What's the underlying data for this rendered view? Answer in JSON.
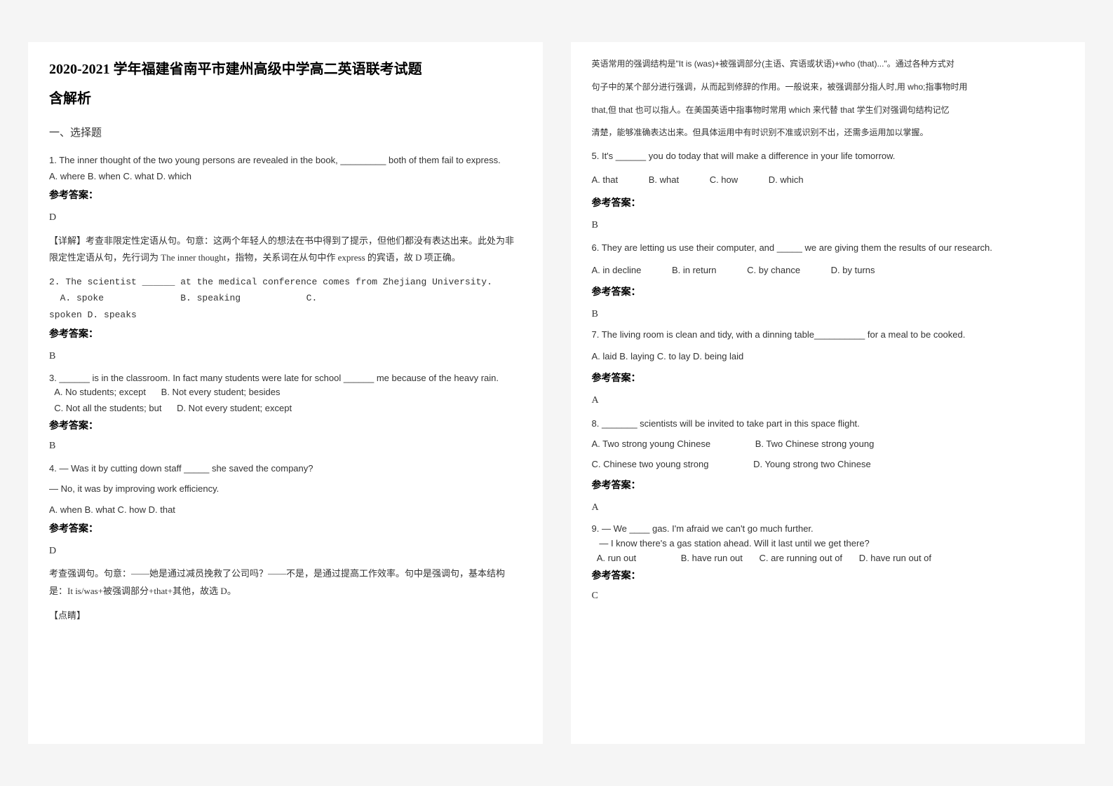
{
  "header": {
    "title": "2020-2021 学年福建省南平市建州高级中学高二英语联考试题",
    "subtitle": "含解析",
    "section": "一、选择题"
  },
  "left": {
    "q1": {
      "text": "1. The inner thought of the two young persons are revealed in the book, _________ both of them fail to express.",
      "opts": "A. where   B. when   C. what   D. which",
      "ansLabel": "参考答案：",
      "ans": "D",
      "expl": "【详解】考查非限定性定语从句。句意：这两个年轻人的想法在书中得到了提示，但他们都没有表达出来。此处为非限定性定语从句，先行词为 The inner thought，指物，关系词在从句中作 express 的宾语，故 D 项正确。"
    },
    "q2": {
      "text": "  2. The scientist ______ at the medical conference comes from Zhejiang University.",
      "optsLine1": "  A. spoke              B. speaking            C.",
      "optsLine2": "spoken             D. speaks",
      "ansLabel": "参考答案：",
      "ans": "B"
    },
    "q3": {
      "text": "3. ______ is in the classroom. In fact many students were late for school ______ me because of the heavy rain.",
      "optA": "A. No students; except",
      "optB": "B. Not every student; besides",
      "optC": "C. Not all the students; but",
      "optD": "D. Not every student; except",
      "ansLabel": "参考答案：",
      "ans": "B"
    },
    "q4": {
      "text1": "4. — Was it by cutting down staff _____ she saved the company?",
      "text2": "— No, it was by improving work efficiency.",
      "opts": "A. when   B. what C. how   D. that",
      "ansLabel": "参考答案：",
      "ans": "D",
      "expl": "考查强调句。句意：——她是通过减员挽救了公司吗？——不是，是通过提高工作效率。句中是强调句，基本结构是：It is/was+被强调部分+that+其他，故选 D。",
      "note": "【点睛】"
    }
  },
  "right": {
    "intro": {
      "line1": "英语常用的强调结构是\"It is (was)+被强调部分(主语、宾语或状语)+who (that)...\"。通过各种方式对",
      "line2": "句子中的某个部分进行强调，从而起到修辞的作用。一般说来，被强调部分指人时,用 who;指事物时用",
      "line3": "that,但 that 也可以指人。在美国英语中指事物时常用 which 来代替 that 学生们对强调句结构记忆",
      "line4": "清楚，能够准确表达出来。但具体运用中有时识别不准或识别不出，还需多运用加以掌握。"
    },
    "q5": {
      "text": "5. It's ______ you do today that will make a difference in your life tomorrow.",
      "optA": "A. that",
      "optB": "B. what",
      "optC": "C. how",
      "optD": "D. which",
      "ansLabel": "参考答案：",
      "ans": "B"
    },
    "q6": {
      "text": "6. They are letting us use their computer, and _____ we are giving them the results of our research.",
      "optA": "A. in decline",
      "optB": "B. in return",
      "optC": "C. by chance",
      "optD": "D. by turns",
      "ansLabel": "参考答案：",
      "ans": "B"
    },
    "q7": {
      "text": "7. The living room is clean and tidy, with a dinning table__________ for a meal to be cooked.",
      "opts": "A. laid   B. laying   C. to lay   D. being laid",
      "ansLabel": "参考答案：",
      "ans": "A"
    },
    "q8": {
      "text": "8. _______ scientists will be invited to take part in this space flight.",
      "optA": "A. Two strong young Chinese",
      "optB": "B. Two Chinese strong young",
      "optC": "C. Chinese two young strong",
      "optD": "D. Young strong two Chinese",
      "ansLabel": "参考答案：",
      "ans": "A"
    },
    "q9": {
      "text1": "9. — We ____ gas. I'm afraid we can't go much further.",
      "text2": "   — I know there's a gas station ahead. Will it last until we get there?",
      "optA": "A. run out",
      "optB": "B. have run out",
      "optC": "C. are running out of",
      "optD": "D. have run out of",
      "ansLabel": "参考答案：",
      "ans": "C"
    }
  }
}
